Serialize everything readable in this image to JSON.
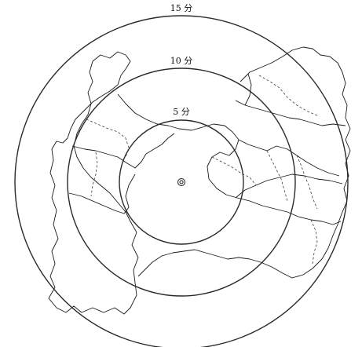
{
  "map": {
    "rings": [
      {
        "label": "5 分"
      },
      {
        "label": "10 分"
      },
      {
        "label": "15 分"
      }
    ],
    "center_marker": "target-marker",
    "colors": {
      "line": "#1a1a1a",
      "background": "#ffffff"
    }
  }
}
